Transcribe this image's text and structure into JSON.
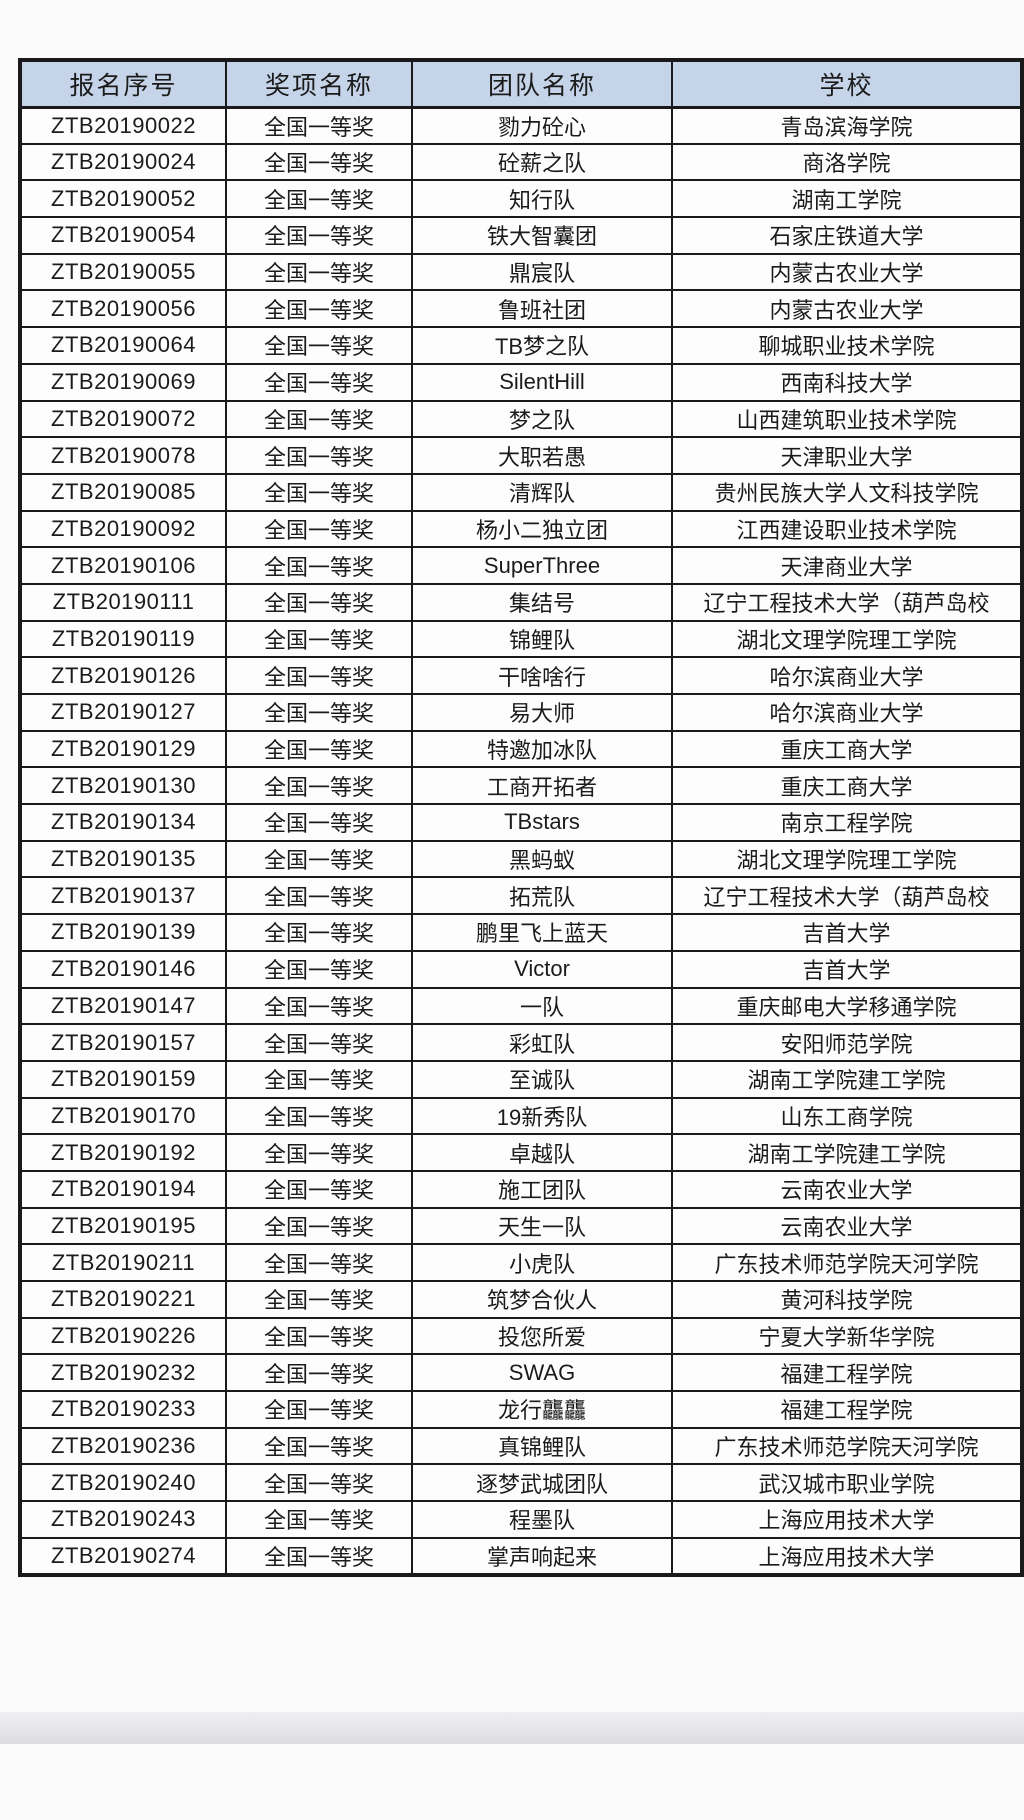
{
  "table": {
    "headers": [
      "报名序号",
      "奖项名称",
      "团队名称",
      "学校"
    ],
    "rows": [
      [
        "ZTB20190022",
        "全国一等奖",
        "勠力砼心",
        "青岛滨海学院"
      ],
      [
        "ZTB20190024",
        "全国一等奖",
        "砼薪之队",
        "商洛学院"
      ],
      [
        "ZTB20190052",
        "全国一等奖",
        "知行队",
        "湖南工学院"
      ],
      [
        "ZTB20190054",
        "全国一等奖",
        "铁大智囊团",
        "石家庄铁道大学"
      ],
      [
        "ZTB20190055",
        "全国一等奖",
        "鼎宸队",
        "内蒙古农业大学"
      ],
      [
        "ZTB20190056",
        "全国一等奖",
        "鲁班社团",
        "内蒙古农业大学"
      ],
      [
        "ZTB20190064",
        "全国一等奖",
        "TB梦之队",
        "聊城职业技术学院"
      ],
      [
        "ZTB20190069",
        "全国一等奖",
        "SilentHill",
        "西南科技大学"
      ],
      [
        "ZTB20190072",
        "全国一等奖",
        "梦之队",
        "山西建筑职业技术学院"
      ],
      [
        "ZTB20190078",
        "全国一等奖",
        "大职若愚",
        "天津职业大学"
      ],
      [
        "ZTB20190085",
        "全国一等奖",
        "清辉队",
        "贵州民族大学人文科技学院"
      ],
      [
        "ZTB20190092",
        "全国一等奖",
        "杨小二独立团",
        "江西建设职业技术学院"
      ],
      [
        "ZTB20190106",
        "全国一等奖",
        "SuperThree",
        "天津商业大学"
      ],
      [
        "ZTB20190111",
        "全国一等奖",
        "集结号",
        "辽宁工程技术大学（葫芦岛校"
      ],
      [
        "ZTB20190119",
        "全国一等奖",
        "锦鲤队",
        "湖北文理学院理工学院"
      ],
      [
        "ZTB20190126",
        "全国一等奖",
        "干啥啥行",
        "哈尔滨商业大学"
      ],
      [
        "ZTB20190127",
        "全国一等奖",
        "易大师",
        "哈尔滨商业大学"
      ],
      [
        "ZTB20190129",
        "全国一等奖",
        "特邀加冰队",
        "重庆工商大学"
      ],
      [
        "ZTB20190130",
        "全国一等奖",
        "工商开拓者",
        "重庆工商大学"
      ],
      [
        "ZTB20190134",
        "全国一等奖",
        "TBstars",
        "南京工程学院"
      ],
      [
        "ZTB20190135",
        "全国一等奖",
        "黑蚂蚁",
        "湖北文理学院理工学院"
      ],
      [
        "ZTB20190137",
        "全国一等奖",
        "拓荒队",
        "辽宁工程技术大学（葫芦岛校"
      ],
      [
        "ZTB20190139",
        "全国一等奖",
        "鹏里飞上蓝天",
        "吉首大学"
      ],
      [
        "ZTB20190146",
        "全国一等奖",
        "Victor",
        "吉首大学"
      ],
      [
        "ZTB20190147",
        "全国一等奖",
        "一队",
        "重庆邮电大学移通学院"
      ],
      [
        "ZTB20190157",
        "全国一等奖",
        "彩虹队",
        "安阳师范学院"
      ],
      [
        "ZTB20190159",
        "全国一等奖",
        "至诚队",
        "湖南工学院建工学院"
      ],
      [
        "ZTB20190170",
        "全国一等奖",
        "19新秀队",
        "山东工商学院"
      ],
      [
        "ZTB20190192",
        "全国一等奖",
        "卓越队",
        "湖南工学院建工学院"
      ],
      [
        "ZTB20190194",
        "全国一等奖",
        "施工团队",
        "云南农业大学"
      ],
      [
        "ZTB20190195",
        "全国一等奖",
        "天生一队",
        "云南农业大学"
      ],
      [
        "ZTB20190211",
        "全国一等奖",
        "小虎队",
        "广东技术师范学院天河学院"
      ],
      [
        "ZTB20190221",
        "全国一等奖",
        "筑梦合伙人",
        "黄河科技学院"
      ],
      [
        "ZTB20190226",
        "全国一等奖",
        "投您所爱",
        "宁夏大学新华学院"
      ],
      [
        "ZTB20190232",
        "全国一等奖",
        "SWAG",
        "福建工程学院"
      ],
      [
        "ZTB20190233",
        "全国一等奖",
        "龙行龘龘",
        "福建工程学院"
      ],
      [
        "ZTB20190236",
        "全国一等奖",
        "真锦鲤队",
        "广东技术师范学院天河学院"
      ],
      [
        "ZTB20190240",
        "全国一等奖",
        "逐梦武城团队",
        "武汉城市职业学院"
      ],
      [
        "ZTB20190243",
        "全国一等奖",
        "程墨队",
        "上海应用技术大学"
      ],
      [
        "ZTB20190274",
        "全国一等奖",
        "掌声响起来",
        "上海应用技术大学"
      ]
    ]
  },
  "colors": {
    "header_bg": "#c5d4e8",
    "border": "#1a1a1a",
    "text": "#1b1b1b",
    "footer_band": "#e6e6e9"
  }
}
